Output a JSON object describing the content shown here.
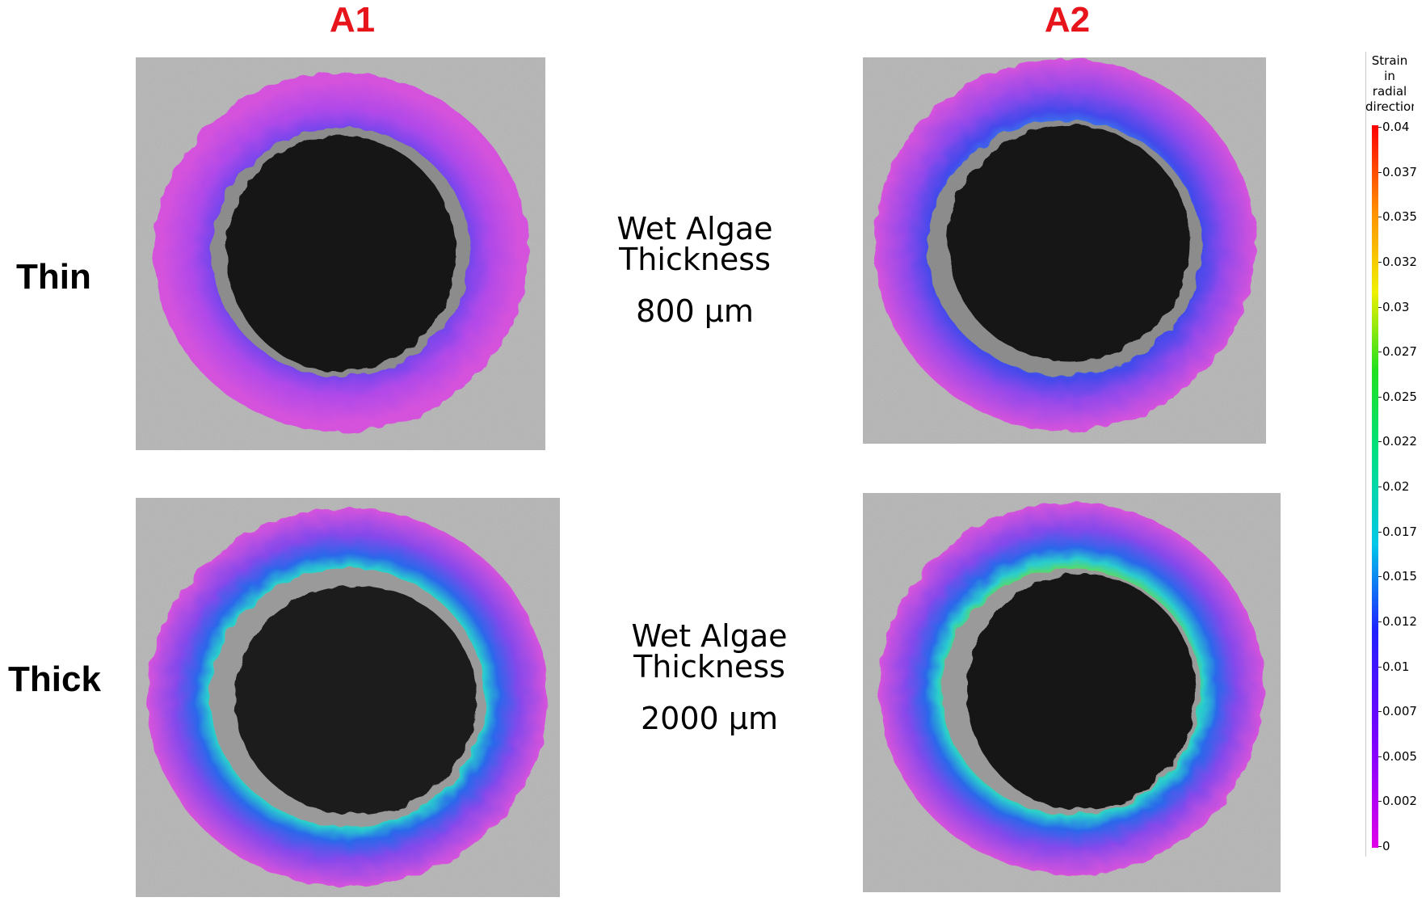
{
  "columns": {
    "a1": "A1",
    "a2": "A2"
  },
  "rows": {
    "thin": "Thin",
    "thick": "Thick"
  },
  "captions": {
    "thin": {
      "line1": "Wet Algae Thickness",
      "line2": "800 µm"
    },
    "thick": {
      "line1": "Wet Algae Thickness",
      "line2": "2000 µm"
    }
  },
  "colorbar": {
    "title_lines": [
      "Strain",
      "in",
      "radial",
      "direction"
    ],
    "ticks": [
      "0",
      "0.002",
      "0.005",
      "0.007",
      "0.01",
      "0.012",
      "0.015",
      "0.017",
      "0.02",
      "0.022",
      "0.025",
      "0.027",
      "0.03",
      "0.032",
      "0.035",
      "0.037",
      "0.04"
    ],
    "colors": {
      "min": "#e000e8",
      "max": "#ff0000"
    }
  },
  "panels": [
    {
      "id": "thin-a1",
      "scheme": "low"
    },
    {
      "id": "thin-a2",
      "scheme": "medium"
    },
    {
      "id": "thick-a1",
      "scheme": "high"
    },
    {
      "id": "thick-a2",
      "scheme": "high"
    }
  ]
}
